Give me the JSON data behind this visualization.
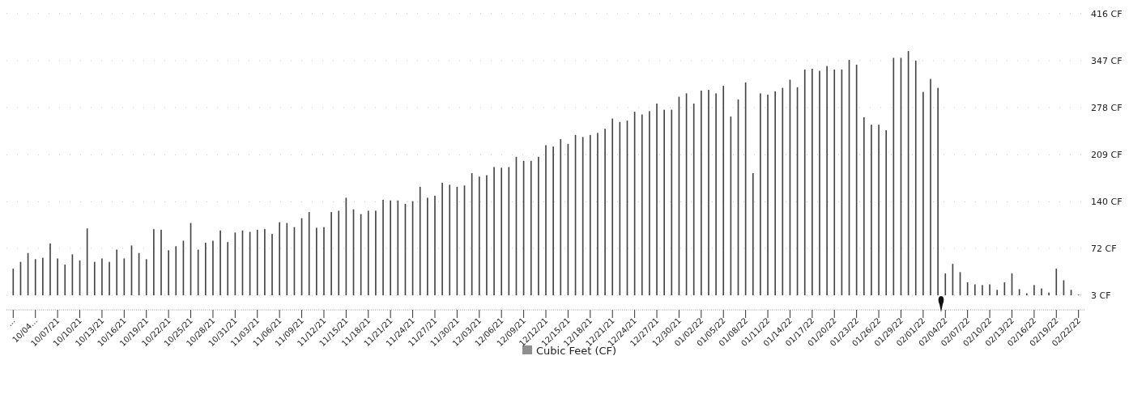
{
  "chart_data": {
    "type": "bar",
    "categories": [
      "...",
      null,
      null,
      "10/04...",
      null,
      null,
      "10/07/21",
      null,
      null,
      "10/10/21",
      null,
      null,
      "10/13/21",
      null,
      null,
      "10/16/21",
      null,
      null,
      "10/19/21",
      null,
      null,
      "10/22/21",
      null,
      null,
      "10/25/21",
      null,
      null,
      "10/28/21",
      null,
      null,
      "10/31/21",
      null,
      null,
      "11/03/21",
      null,
      null,
      "11/06/21",
      null,
      null,
      "11/09/21",
      null,
      null,
      "11/12/21",
      null,
      null,
      "11/15/21",
      null,
      null,
      "11/18/21",
      null,
      null,
      "11/21/21",
      null,
      null,
      "11/24/21",
      null,
      null,
      "11/27/21",
      null,
      null,
      "11/30/21",
      null,
      null,
      "12/03/21",
      null,
      null,
      "12/06/21",
      null,
      null,
      "12/09/21",
      null,
      null,
      "12/12/21",
      null,
      null,
      "12/15/21",
      null,
      null,
      "12/18/21",
      null,
      null,
      "12/21/21",
      null,
      null,
      "12/24/21",
      null,
      null,
      "12/27/21",
      null,
      null,
      "12/30/21",
      null,
      null,
      "01/02/22",
      null,
      null,
      "01/05/22",
      null,
      null,
      "01/08/22",
      null,
      null,
      "01/11/22",
      null,
      null,
      "01/14/22",
      null,
      null,
      "01/17/22",
      null,
      null,
      "01/20/22",
      null,
      null,
      "01/23/22",
      null,
      null,
      "01/26/22",
      null,
      null,
      "01/29/22",
      null,
      null,
      "02/01/22",
      null,
      null,
      "02/04/22",
      null,
      null,
      "02/07/22",
      null,
      null,
      "02/10/22",
      null,
      null,
      "02/13/22",
      null,
      null,
      "02/16/22",
      null,
      null,
      "02/19/22",
      null,
      null,
      "02/22/22"
    ],
    "series": [
      {
        "name": "Cubic Feet (CF)",
        "color": "#444444",
        "values": [
          42,
          52,
          65,
          56,
          58,
          79,
          57,
          48,
          63,
          54,
          101,
          52,
          57,
          52,
          70,
          57,
          76,
          65,
          56,
          100,
          99,
          69,
          75,
          83,
          109,
          70,
          80,
          83,
          98,
          81,
          95,
          98,
          96,
          99,
          100,
          93,
          110,
          109,
          103,
          116,
          125,
          102,
          103,
          125,
          127,
          146,
          129,
          122,
          127,
          127,
          143,
          142,
          142,
          137,
          141,
          162,
          146,
          149,
          168,
          165,
          162,
          164,
          182,
          177,
          179,
          191,
          190,
          191,
          206,
          200,
          200,
          206,
          223,
          221,
          232,
          225,
          238,
          235,
          238,
          241,
          247,
          262,
          257,
          259,
          272,
          268,
          273,
          284,
          275,
          275,
          294,
          299,
          284,
          303,
          304,
          299,
          310,
          265,
          290,
          315,
          182,
          299,
          297,
          302,
          307,
          319,
          308,
          334,
          335,
          332,
          339,
          334,
          334,
          348,
          341,
          264,
          253,
          253,
          245,
          351,
          351,
          361,
          347,
          301,
          320,
          307,
          35,
          49,
          37,
          22,
          19,
          18,
          19,
          11,
          22,
          35,
          12,
          6,
          18,
          13,
          7,
          42,
          25,
          11,
          4
        ]
      }
    ],
    "ylim": [
      3,
      416
    ],
    "yticks": [
      {
        "value": 3,
        "label": "3 CF"
      },
      {
        "value": 72,
        "label": "72 CF"
      },
      {
        "value": 140,
        "label": "140 CF"
      },
      {
        "value": 209,
        "label": "209 CF"
      },
      {
        "value": 278,
        "label": "278 CF"
      },
      {
        "value": 347,
        "label": "347 CF"
      },
      {
        "value": 416,
        "label": "416 CF"
      }
    ],
    "grid": "y",
    "legend": "bottom"
  }
}
